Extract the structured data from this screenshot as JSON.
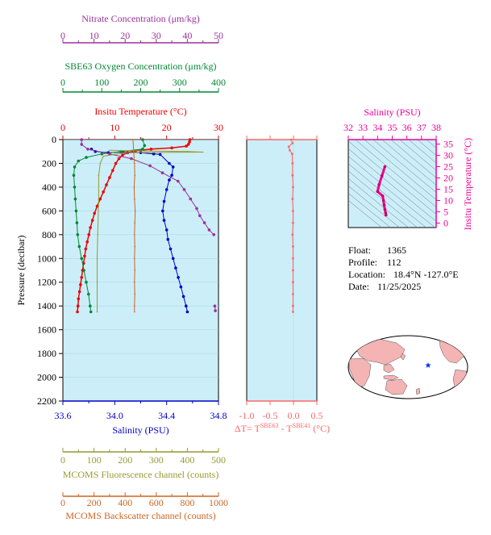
{
  "chart_data": [
    {
      "type": "line",
      "ylabel": "Pressure (decibar)",
      "ylim": [
        0,
        2200
      ],
      "yticks": [
        0,
        200,
        400,
        600,
        800,
        1000,
        1200,
        1400,
        1600,
        1800,
        2000,
        2200
      ],
      "y_inverted": true,
      "axes": {
        "nitrate": {
          "label": "Nitrate Concentration (μm/kg)",
          "range": [
            0,
            50
          ],
          "ticks": [
            0,
            10,
            20,
            30,
            40,
            50
          ],
          "color": "#993399"
        },
        "oxygen": {
          "label": "SBE63 Oxygen Concentration (μm/kg)",
          "range": [
            0,
            400
          ],
          "ticks": [
            0,
            100,
            200,
            300,
            400
          ],
          "color": "#008833"
        },
        "temperature": {
          "label": "Insitu Temperature (°C)",
          "range": [
            0,
            30
          ],
          "ticks": [
            0,
            10,
            20,
            30
          ],
          "color": "#ee0000"
        },
        "salinity": {
          "label": "Salinity (PSU)",
          "range": [
            33.6,
            34.8
          ],
          "ticks": [
            "33.6",
            "34.0",
            "34.4",
            "34.8"
          ],
          "color": "#0000cc"
        },
        "fluorescence": {
          "label": "MCOMS Fluorescence channel (counts)",
          "range": [
            0,
            500
          ],
          "ticks": [
            0,
            100,
            200,
            300,
            400,
            500
          ],
          "color": "#999933"
        },
        "backscatter": {
          "label": "MCOMS Backscatter channel (counts)",
          "range": [
            0,
            1000
          ],
          "ticks": [
            0,
            200,
            400,
            600,
            800,
            1000
          ],
          "color": "#cc6622"
        }
      },
      "series": [
        {
          "axis": "temperature",
          "color": "#ee0000",
          "points": [
            [
              24.5,
              0
            ],
            [
              24.4,
              20
            ],
            [
              24.2,
              40
            ],
            [
              23.8,
              55
            ],
            [
              21.0,
              70
            ],
            [
              17.0,
              80
            ],
            [
              14.0,
              95
            ],
            [
              12.5,
              110
            ],
            [
              11.5,
              130
            ],
            [
              10.8,
              160
            ],
            [
              10.2,
              200
            ],
            [
              9.6,
              260
            ],
            [
              9.0,
              320
            ],
            [
              8.4,
              380
            ],
            [
              7.8,
              440
            ],
            [
              7.2,
              500
            ],
            [
              6.6,
              560
            ],
            [
              6.1,
              620
            ],
            [
              5.7,
              680
            ],
            [
              5.3,
              740
            ],
            [
              5.0,
              800
            ],
            [
              4.7,
              860
            ],
            [
              4.4,
              920
            ],
            [
              4.2,
              980
            ],
            [
              4.0,
              1040
            ],
            [
              3.8,
              1100
            ],
            [
              3.6,
              1160
            ],
            [
              3.4,
              1220
            ],
            [
              3.2,
              1280
            ],
            [
              3.0,
              1340
            ],
            [
              2.9,
              1400
            ],
            [
              2.8,
              1450
            ]
          ]
        },
        {
          "axis": "salinity",
          "color": "#0000cc",
          "points": [
            [
              33.82,
              80
            ],
            [
              33.85,
              100
            ],
            [
              33.95,
              110
            ],
            [
              34.05,
              105
            ],
            [
              34.2,
              110
            ],
            [
              34.3,
              120
            ],
            [
              34.35,
              125
            ],
            [
              34.42,
              200
            ],
            [
              34.45,
              230
            ],
            [
              34.44,
              300
            ],
            [
              34.42,
              340
            ],
            [
              34.4,
              420
            ],
            [
              34.38,
              520
            ],
            [
              34.37,
              600
            ],
            [
              34.38,
              680
            ],
            [
              34.4,
              760
            ],
            [
              34.41,
              840
            ],
            [
              34.43,
              920
            ],
            [
              34.45,
              1000
            ],
            [
              34.47,
              1080
            ],
            [
              34.49,
              1160
            ],
            [
              34.51,
              1240
            ],
            [
              34.53,
              1320
            ],
            [
              34.55,
              1400
            ],
            [
              34.56,
              1450
            ]
          ]
        },
        {
          "axis": "oxygen",
          "color": "#008833",
          "points": [
            [
              205,
              0
            ],
            [
              210,
              50
            ],
            [
              205,
              80
            ],
            [
              150,
              100
            ],
            [
              100,
              120
            ],
            [
              60,
              150
            ],
            [
              40,
              180
            ],
            [
              30,
              230
            ],
            [
              28,
              300
            ],
            [
              30,
              400
            ],
            [
              32,
              500
            ],
            [
              34,
              600
            ],
            [
              36,
              700
            ],
            [
              38,
              800
            ],
            [
              42,
              900
            ],
            [
              48,
              1000
            ],
            [
              54,
              1100
            ],
            [
              60,
              1200
            ],
            [
              66,
              1300
            ],
            [
              70,
              1400
            ],
            [
              72,
              1450
            ]
          ]
        },
        {
          "axis": "nitrate",
          "color": "#993399",
          "points": [
            [
              6,
              0
            ],
            [
              6,
              40
            ],
            [
              8,
              80
            ],
            [
              15,
              120
            ],
            [
              22,
              160
            ],
            [
              28,
              220
            ],
            [
              32,
              280
            ],
            [
              37,
              350
            ],
            [
              39,
              420
            ],
            [
              41,
              500
            ],
            [
              43,
              580
            ],
            [
              44,
              640
            ],
            [
              45.5,
              700
            ],
            [
              47,
              760
            ],
            [
              48.5,
              800
            ]
          ]
        },
        {
          "axis": "nitrate",
          "color": "#993399",
          "points": [
            [
              48.8,
              1400
            ],
            [
              49.0,
              1440
            ]
          ]
        },
        {
          "axis": "fluorescence",
          "color": "#999933",
          "points": [
            [
              150,
              90
            ],
            [
              250,
              95
            ],
            [
              400,
              100
            ],
            [
              450,
              105
            ],
            [
              200,
              110
            ],
            [
              130,
              140
            ],
            [
              120,
              200
            ],
            [
              115,
              300
            ],
            [
              115,
              500
            ],
            [
              112,
              800
            ],
            [
              110,
              1000
            ],
            [
              110,
              1200
            ],
            [
              110,
              1450
            ]
          ]
        },
        {
          "axis": "backscatter",
          "color": "#cc6622",
          "points": [
            [
              450,
              0
            ],
            [
              455,
              100
            ],
            [
              460,
              200
            ],
            [
              462,
              300
            ],
            [
              458,
              400
            ],
            [
              460,
              500
            ],
            [
              465,
              600
            ],
            [
              462,
              700
            ],
            [
              460,
              800
            ],
            [
              462,
              900
            ],
            [
              460,
              1000
            ],
            [
              462,
              1100
            ],
            [
              460,
              1200
            ],
            [
              462,
              1300
            ],
            [
              460,
              1400
            ],
            [
              460,
              1450
            ]
          ]
        }
      ]
    },
    {
      "type": "line",
      "xlabel_prefix": "ΔT= T",
      "xlabel_sup1": "SBE63",
      "xlabel_mid": " - T",
      "xlabel_sup2": "SBE41",
      "xlabel_suffix": " (°C)",
      "xlim": [
        -1.0,
        0.5
      ],
      "xticks": [
        "-1.0",
        "-0.5",
        "0.0",
        "0.5"
      ],
      "ylim": [
        0,
        2200
      ],
      "color": "#ff6666",
      "points": [
        [
          -0.05,
          0
        ],
        [
          -0.02,
          30
        ],
        [
          -0.1,
          60
        ],
        [
          -0.08,
          90
        ],
        [
          -0.03,
          120
        ],
        [
          -0.02,
          200
        ],
        [
          -0.02,
          300
        ],
        [
          -0.01,
          400
        ],
        [
          -0.02,
          500
        ],
        [
          -0.01,
          600
        ],
        [
          -0.01,
          700
        ],
        [
          -0.02,
          800
        ],
        [
          -0.01,
          900
        ],
        [
          -0.01,
          1000
        ],
        [
          -0.01,
          1100
        ],
        [
          -0.01,
          1200
        ],
        [
          -0.01,
          1300
        ],
        [
          -0.01,
          1400
        ],
        [
          -0.01,
          1450
        ]
      ]
    },
    {
      "type": "scatter",
      "title": "Salinity (PSU)",
      "xlim": [
        32,
        38
      ],
      "xticks": [
        "32",
        "33",
        "34",
        "35",
        "36",
        "37",
        "38"
      ],
      "ylabel": "Insitu Temperature (°C)",
      "ylim": [
        -2,
        37
      ],
      "yticks": [
        "0",
        "5",
        "10",
        "15",
        "20",
        "25",
        "30",
        "35"
      ],
      "color": "#ee0099",
      "points": [
        [
          34.5,
          25
        ],
        [
          34.3,
          21
        ],
        [
          34.1,
          17
        ],
        [
          34.0,
          14
        ],
        [
          34.35,
          12
        ],
        [
          34.4,
          10
        ],
        [
          34.45,
          8
        ],
        [
          34.5,
          6
        ],
        [
          34.55,
          4.5
        ],
        [
          34.57,
          3.5
        ]
      ]
    }
  ],
  "float_info": {
    "float_label": "Float:",
    "float_value": "1365",
    "profile_label": "Profile:",
    "profile_value": "112",
    "location_label": "Location:",
    "location_value": "18.4°N  -127.0°E",
    "date_label": "Date:",
    "date_value": "11/25/2025"
  },
  "map": {
    "marker_lat": 18.4,
    "marker_lon": -127.0,
    "land_color": "#f4b4b4",
    "ocean_color": "#ffffff",
    "marker_color": "#0033ff"
  }
}
